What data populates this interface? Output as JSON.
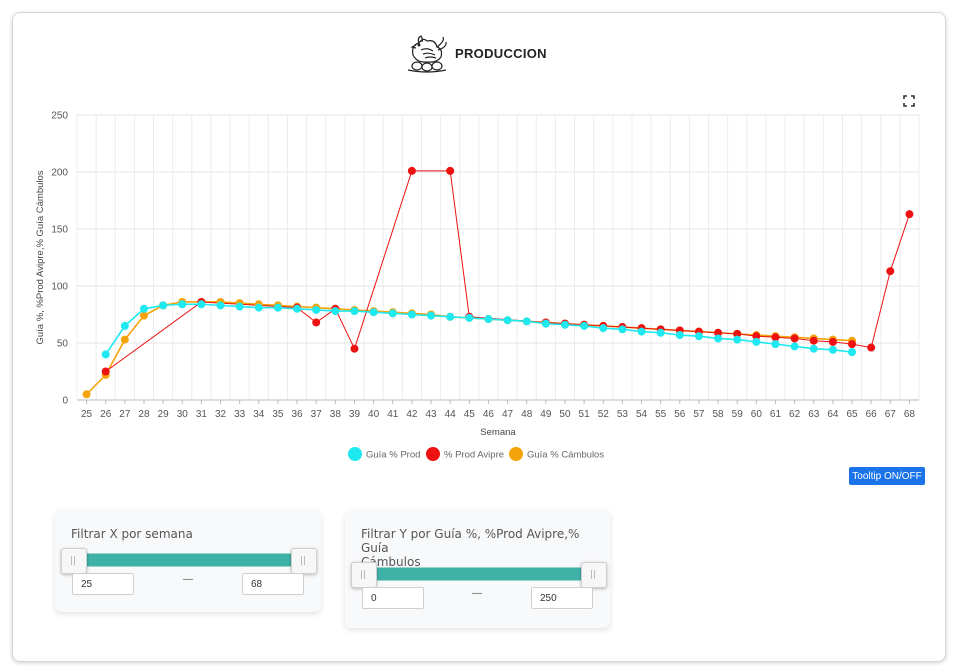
{
  "header": {
    "title": "PRODUCCION",
    "logo": "hen-with-eggs-icon"
  },
  "controls": {
    "fullscreen_icon": "fullscreen-icon",
    "tooltip_button": "Tooltip ON/OFF"
  },
  "filter_x": {
    "label": "Filtrar X por semana",
    "min_value": "25",
    "max_value": "68",
    "separator": "—"
  },
  "filter_y": {
    "label_line1": "Filtrar Y por Guía %, %Prod Avipre,% Guía",
    "label_line2": "Cámbulos",
    "min_value": "0",
    "max_value": "250",
    "separator": "—"
  },
  "chart_data": {
    "type": "line",
    "xlabel": "Semana",
    "ylabel": "Guía %, %Prod Avipre,% Guía Cámbulos",
    "xlim": [
      25,
      68
    ],
    "ylim": [
      0,
      250
    ],
    "yticks": [
      0,
      50,
      100,
      150,
      200,
      250
    ],
    "grid": true,
    "legend_position": "bottom",
    "series": [
      {
        "name": "Guía % Prod",
        "color": "#1ee8f0",
        "points": [
          [
            26,
            40
          ],
          [
            27,
            65
          ],
          [
            28,
            80
          ],
          [
            29,
            83
          ],
          [
            30,
            84
          ],
          [
            31,
            84
          ],
          [
            32,
            83
          ],
          [
            33,
            82
          ],
          [
            34,
            81
          ],
          [
            35,
            81
          ],
          [
            36,
            80
          ],
          [
            37,
            79
          ],
          [
            38,
            78
          ],
          [
            39,
            78
          ],
          [
            40,
            77
          ],
          [
            41,
            76
          ],
          [
            42,
            75
          ],
          [
            43,
            74
          ],
          [
            44,
            73
          ],
          [
            45,
            72
          ],
          [
            46,
            71
          ],
          [
            47,
            70
          ],
          [
            48,
            69
          ],
          [
            49,
            67
          ],
          [
            50,
            66
          ],
          [
            51,
            65
          ],
          [
            52,
            63
          ],
          [
            53,
            62
          ],
          [
            54,
            60
          ],
          [
            55,
            59
          ],
          [
            56,
            57
          ],
          [
            57,
            56
          ],
          [
            58,
            54
          ],
          [
            59,
            53
          ],
          [
            60,
            51
          ],
          [
            61,
            49
          ],
          [
            62,
            47
          ],
          [
            63,
            45
          ],
          [
            64,
            44
          ],
          [
            65,
            42
          ]
        ]
      },
      {
        "name": "% Prod Avipre",
        "color": "#ee1111",
        "points": [
          [
            26,
            25
          ],
          [
            31,
            86
          ],
          [
            36,
            81
          ],
          [
            37,
            68
          ],
          [
            38,
            80
          ],
          [
            39,
            45
          ],
          [
            42,
            201
          ],
          [
            44,
            201
          ],
          [
            45,
            73
          ],
          [
            49,
            68
          ],
          [
            50,
            67
          ],
          [
            51,
            66
          ],
          [
            52,
            65
          ],
          [
            53,
            64
          ],
          [
            54,
            63
          ],
          [
            55,
            62
          ],
          [
            56,
            61
          ],
          [
            57,
            60
          ],
          [
            58,
            59
          ],
          [
            59,
            58
          ],
          [
            60,
            56
          ],
          [
            61,
            55
          ],
          [
            62,
            54
          ],
          [
            63,
            52
          ],
          [
            64,
            51
          ],
          [
            65,
            49
          ],
          [
            66,
            46
          ],
          [
            67,
            113
          ],
          [
            68,
            163
          ]
        ]
      },
      {
        "name": "Guía % Cámbulos",
        "color": "#f5a30a",
        "points": [
          [
            25,
            5
          ],
          [
            26,
            22
          ],
          [
            27,
            53
          ],
          [
            28,
            74
          ],
          [
            29,
            83
          ],
          [
            30,
            86
          ],
          [
            31,
            86
          ],
          [
            32,
            86
          ],
          [
            33,
            85
          ],
          [
            34,
            84
          ],
          [
            35,
            83
          ],
          [
            36,
            82
          ],
          [
            37,
            81
          ],
          [
            38,
            80
          ],
          [
            39,
            79
          ],
          [
            40,
            78
          ],
          [
            41,
            77
          ],
          [
            42,
            76
          ],
          [
            43,
            75
          ],
          [
            44,
            73
          ],
          [
            45,
            72
          ],
          [
            46,
            71
          ],
          [
            47,
            70
          ],
          [
            48,
            69
          ],
          [
            49,
            68
          ],
          [
            50,
            67
          ],
          [
            51,
            66
          ],
          [
            52,
            65
          ],
          [
            53,
            64
          ],
          [
            54,
            63
          ],
          [
            55,
            62
          ],
          [
            56,
            61
          ],
          [
            57,
            60
          ],
          [
            58,
            59
          ],
          [
            59,
            58
          ],
          [
            60,
            57
          ],
          [
            61,
            56
          ],
          [
            62,
            55
          ],
          [
            63,
            54
          ],
          [
            64,
            53
          ],
          [
            65,
            52
          ]
        ]
      }
    ]
  }
}
